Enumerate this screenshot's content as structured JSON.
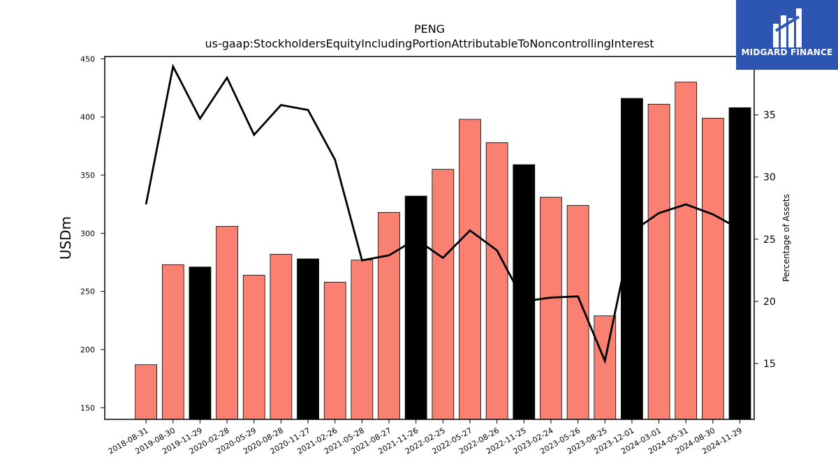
{
  "chart_data": {
    "type": "bar",
    "title": "PENG",
    "subtitle": "us-gaap:StockholdersEquityIncludingPortionAttributableToNoncontrollingInterest",
    "ylabel": "USDm",
    "y2label": "Percentage of Assets",
    "ylim": [
      140,
      452
    ],
    "y2lim": [
      10.5,
      39.7
    ],
    "yticks": [
      150,
      200,
      250,
      300,
      350,
      400,
      450
    ],
    "y2ticks": [
      15,
      20,
      25,
      30,
      35
    ],
    "categories": [
      "2018-08-31",
      "2019-08-30",
      "2019-11-29",
      "2020-02-28",
      "2020-05-29",
      "2020-08-28",
      "2020-11-27",
      "2021-02-26",
      "2021-05-28",
      "2021-08-27",
      "2021-11-26",
      "2022-02-25",
      "2022-05-27",
      "2022-08-26",
      "2022-11-25",
      "2023-02-24",
      "2023-05-26",
      "2023-08-25",
      "2023-12-01",
      "2024-03-01",
      "2024-05-31",
      "2024-08-30",
      "2024-11-29"
    ],
    "series": [
      {
        "type": "bar",
        "values": [
          187,
          273,
          271,
          306,
          264,
          282,
          278,
          258,
          277,
          318,
          332,
          355,
          398,
          378,
          359,
          331,
          324,
          229,
          416,
          411,
          430,
          399,
          408
        ],
        "highlight": [
          false,
          false,
          true,
          false,
          false,
          false,
          true,
          false,
          false,
          false,
          true,
          false,
          false,
          false,
          true,
          false,
          false,
          false,
          true,
          false,
          false,
          false,
          true
        ]
      },
      {
        "type": "line",
        "axis": "right",
        "values": [
          27.8,
          38.9,
          34.7,
          38.0,
          33.4,
          35.8,
          35.4,
          31.4,
          23.3,
          23.7,
          25.0,
          23.5,
          25.7,
          24.1,
          20.0,
          20.3,
          20.4,
          15.2,
          25.6,
          27.1,
          27.8,
          27.0,
          25.8
        ]
      }
    ],
    "colors": {
      "bar": "#fa8072",
      "bar_highlight": "#000000",
      "line": "#000000"
    },
    "grid": false,
    "legend": "none"
  },
  "logo": {
    "text": "MIDGARD FINANCE",
    "bg": "#2d56b3"
  }
}
